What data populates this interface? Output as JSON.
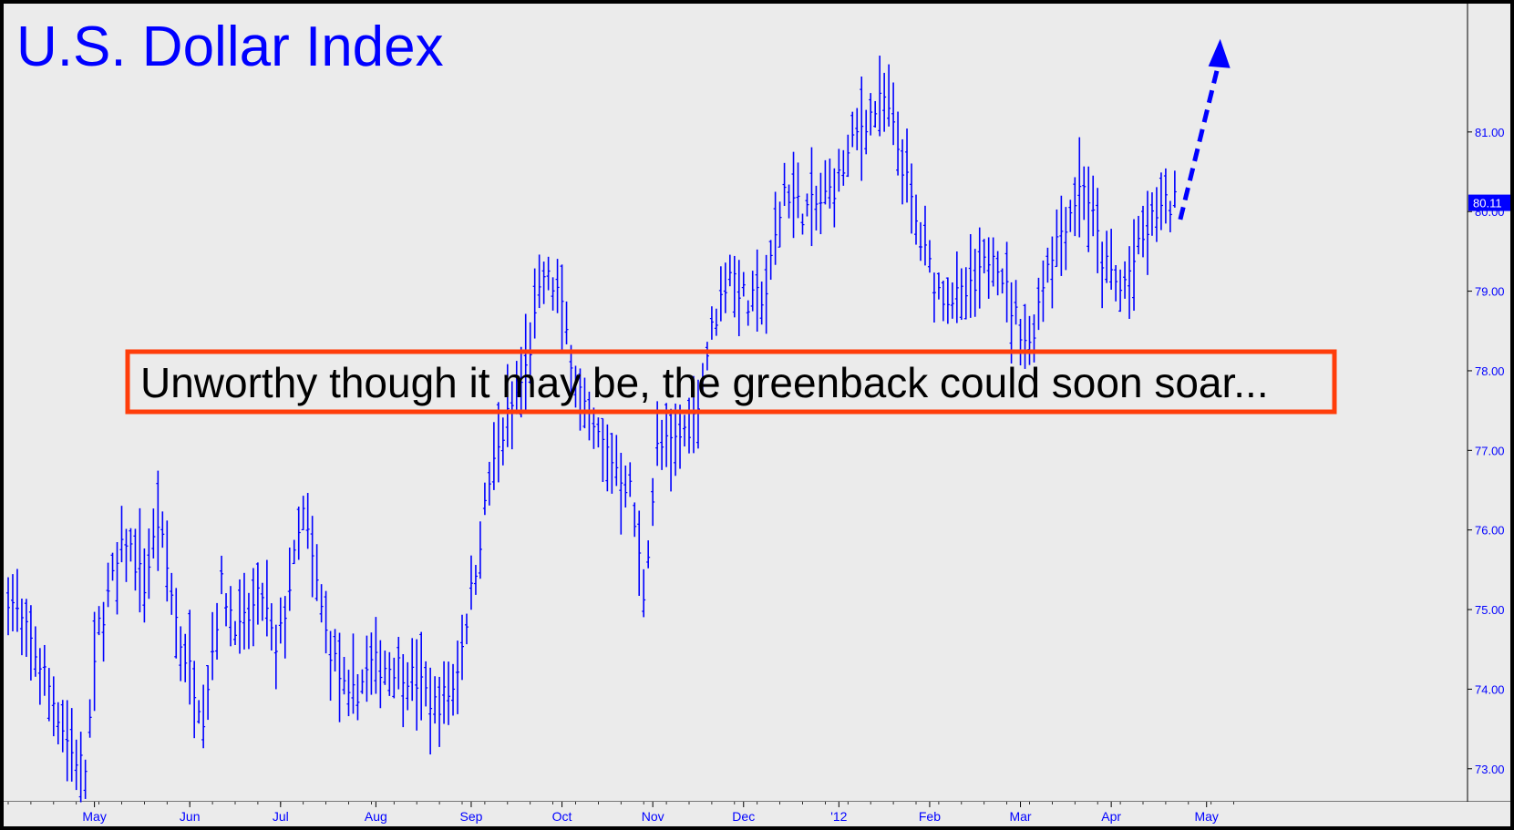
{
  "chart_data": {
    "type": "ohlc",
    "title": "U.S. Dollar Index",
    "annotation": "Unworthy though it may be, the greenback could soon soar...",
    "last_price_label": "80.11",
    "last_price": 80.11,
    "ylim": [
      72.7,
      82.2
    ],
    "y_ticks": [
      {
        "value": 73,
        "label": "73.00"
      },
      {
        "value": 74,
        "label": "74.00"
      },
      {
        "value": 75,
        "label": "75.00"
      },
      {
        "value": 76,
        "label": "76.00"
      },
      {
        "value": 77,
        "label": "77.00"
      },
      {
        "value": 78,
        "label": "78.00"
      },
      {
        "value": 79,
        "label": "79.00"
      },
      {
        "value": 80,
        "label": "80.00"
      },
      {
        "value": 81,
        "label": "81.00"
      }
    ],
    "x_labels": [
      {
        "label": "May",
        "bar": 19
      },
      {
        "label": "Jun",
        "bar": 40
      },
      {
        "label": "Jul",
        "bar": 60
      },
      {
        "label": "Aug",
        "bar": 81
      },
      {
        "label": "Sep",
        "bar": 102
      },
      {
        "label": "Oct",
        "bar": 122
      },
      {
        "label": "Nov",
        "bar": 142
      },
      {
        "label": "Dec",
        "bar": 162
      },
      {
        "label": "'12",
        "bar": 183
      },
      {
        "label": "Feb",
        "bar": 203
      },
      {
        "label": "Mar",
        "bar": 223
      },
      {
        "label": "Apr",
        "bar": 243
      },
      {
        "label": "May",
        "bar": 264
      }
    ],
    "projection": {
      "from_bar": 257,
      "from_price": 79.9,
      "to_bar": 267,
      "to_price": 82.1
    },
    "anchors": [
      [
        0,
        75.2
      ],
      [
        8,
        74.2
      ],
      [
        14,
        73.2
      ],
      [
        17,
        73.0
      ],
      [
        20,
        74.8
      ],
      [
        26,
        75.9
      ],
      [
        30,
        75.3
      ],
      [
        33,
        76.1
      ],
      [
        38,
        74.6
      ],
      [
        43,
        73.7
      ],
      [
        47,
        75.3
      ],
      [
        51,
        74.7
      ],
      [
        56,
        75.2
      ],
      [
        59,
        74.4
      ],
      [
        65,
        76.2
      ],
      [
        70,
        74.7
      ],
      [
        75,
        73.8
      ],
      [
        80,
        74.3
      ],
      [
        86,
        74.3
      ],
      [
        90,
        74.1
      ],
      [
        94,
        73.8
      ],
      [
        98,
        74.0
      ],
      [
        102,
        75.2
      ],
      [
        106,
        76.6
      ],
      [
        110,
        77.4
      ],
      [
        114,
        78.0
      ],
      [
        118,
        79.2
      ],
      [
        121,
        79.0
      ],
      [
        124,
        78.2
      ],
      [
        128,
        77.3
      ],
      [
        132,
        77.0
      ],
      [
        137,
        76.5
      ],
      [
        140,
        75.2
      ],
      [
        143,
        77.0
      ],
      [
        147,
        77.1
      ],
      [
        151,
        77.4
      ],
      [
        155,
        78.5
      ],
      [
        159,
        79.3
      ],
      [
        163,
        78.8
      ],
      [
        167,
        79.0
      ],
      [
        171,
        80.3
      ],
      [
        175,
        80.0
      ],
      [
        179,
        80.1
      ],
      [
        183,
        80.4
      ],
      [
        188,
        81.1
      ],
      [
        193,
        81.4
      ],
      [
        197,
        80.6
      ],
      [
        201,
        79.6
      ],
      [
        205,
        79.0
      ],
      [
        209,
        78.9
      ],
      [
        213,
        79.0
      ],
      [
        217,
        79.6
      ],
      [
        221,
        78.8
      ],
      [
        225,
        78.3
      ],
      [
        229,
        79.4
      ],
      [
        233,
        79.9
      ],
      [
        237,
        80.4
      ],
      [
        241,
        79.4
      ],
      [
        245,
        79.0
      ],
      [
        249,
        79.5
      ],
      [
        253,
        80.0
      ],
      [
        257,
        80.1
      ]
    ]
  }
}
